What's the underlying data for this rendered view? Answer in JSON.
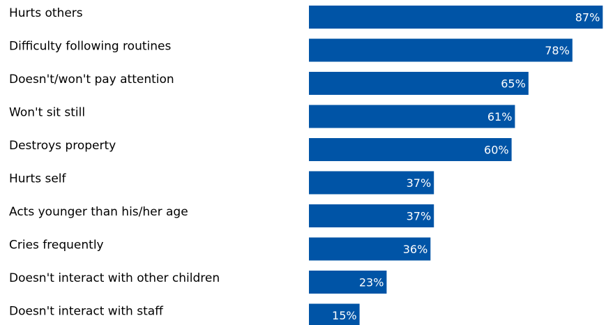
{
  "chart_data": {
    "type": "bar",
    "orientation": "horizontal",
    "categories": [
      "Hurts others",
      "Difficulty following routines",
      "Doesn't/won't pay attention",
      "Won't sit still",
      "Destroys property",
      "Hurts self",
      "Acts younger than his/her age",
      "Cries frequently",
      "Doesn't interact with other children",
      "Doesn't interact with staff"
    ],
    "values": [
      87,
      78,
      65,
      61,
      60,
      37,
      37,
      36,
      23,
      15
    ],
    "value_labels": [
      "87%",
      "78%",
      "65%",
      "61%",
      "60%",
      "37%",
      "37%",
      "36%",
      "23%",
      "15%"
    ],
    "xlim": [
      0,
      100
    ],
    "unit": "%",
    "grid": false,
    "legend": "none",
    "bar_color": "#0054a6",
    "label_color": "#ffffff"
  }
}
